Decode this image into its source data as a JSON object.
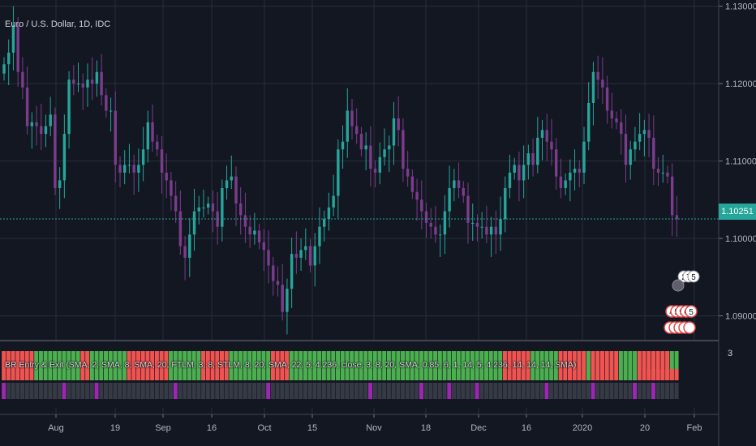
{
  "header": {
    "symbol_title": "Euro / U.S. Dollar, 1D, IDC"
  },
  "indicator": {
    "title": "BR Entry & Exit (SMA, 2, SMA, 8, SMA, 20, FTLM, 3, 8, STLM, 8, 20, SMA, 22, 5, 4.236, close, 3, 8, 20, SMA, 0.85, 6, 1, 14, 5, 4.236, 14, 14, 14, SMA)",
    "scale_value": "3"
  },
  "price_badge": "1.10251",
  "markers": {
    "upper": "2 7 5",
    "lower": "4 5 9 6 5"
  },
  "colors": {
    "background": "#131722",
    "grid": "#2a2e39",
    "bull_candle": "#26a69a",
    "bear_candle": "#7b3c8c",
    "band_green": "#4caf50",
    "band_red": "#f05350",
    "band_purple": "#9c27b0",
    "band_gray": "#363a45",
    "marker_red": "#e04848"
  },
  "chart_data": {
    "type": "candlestick",
    "title": "Euro / U.S. Dollar, 1D, IDC",
    "y_axis": {
      "ticks": [
        "1.13000",
        "1.12000",
        "1.11000",
        "1.10000",
        "1.09000"
      ],
      "ylim": [
        1.0868,
        1.1308
      ],
      "last_price": 1.10251
    },
    "x_axis": {
      "ticks": [
        "Aug",
        "19",
        "Sep",
        "16",
        "Oct",
        "15",
        "Nov",
        "18",
        "Dec",
        "16",
        "2020",
        "20",
        "Feb"
      ]
    },
    "closes": [
      1.1225,
      1.124,
      1.1275,
      1.1215,
      1.1195,
      1.1145,
      1.115,
      1.1145,
      1.1135,
      1.1145,
      1.116,
      1.1065,
      1.1075,
      1.1135,
      1.1205,
      1.12,
      1.12,
      1.1195,
      1.1205,
      1.12,
      1.1215,
      1.1185,
      1.1165,
      1.1165,
      1.1095,
      1.1085,
      1.1095,
      1.1095,
      1.1085,
      1.1095,
      1.1115,
      1.115,
      1.1125,
      1.1115,
      1.1085,
      1.1075,
      1.1055,
      1.1035,
      1.099,
      1.0975,
      1.1005,
      1.1035,
      1.104,
      1.104,
      1.1045,
      1.1035,
      1.1015,
      1.1065,
      1.1075,
      1.108,
      1.1045,
      1.103,
      1.1015,
      1.1005,
      1.101,
      1.0995,
      1.0985,
      1.0965,
      1.0945,
      1.094,
      1.0905,
      1.0935,
      1.098,
      1.0975,
      1.0985,
      1.099,
      1.0965,
      1.099,
      1.1015,
      1.1025,
      1.104,
      1.1055,
      1.1115,
      1.1125,
      1.1165,
      1.1145,
      1.1135,
      1.1115,
      1.112,
      1.109,
      1.1085,
      1.1105,
      1.1115,
      1.112,
      1.1155,
      1.114,
      1.109,
      1.108,
      1.106,
      1.105,
      1.1035,
      1.102,
      1.1015,
      1.1005,
      1.1005,
      1.1035,
      1.1065,
      1.1075,
      1.1065,
      1.1055,
      1.102,
      1.102,
      1.1015,
      1.1015,
      1.1005,
      1.1015,
      1.1005,
      1.1025,
      1.1065,
      1.1085,
      1.1095,
      1.1075,
      1.1095,
      1.111,
      1.1095,
      1.113,
      1.114,
      1.1125,
      1.1115,
      1.108,
      1.1065,
      1.1075,
      1.1085,
      1.109,
      1.1085,
      1.1125,
      1.1175,
      1.1215,
      1.1205,
      1.1195,
      1.1165,
      1.1155,
      1.115,
      1.1135,
      1.1095,
      1.1115,
      1.1125,
      1.1135,
      1.114,
      1.113,
      1.109,
      1.1085,
      1.1085,
      1.108,
      1.103,
      1.1025
    ]
  }
}
